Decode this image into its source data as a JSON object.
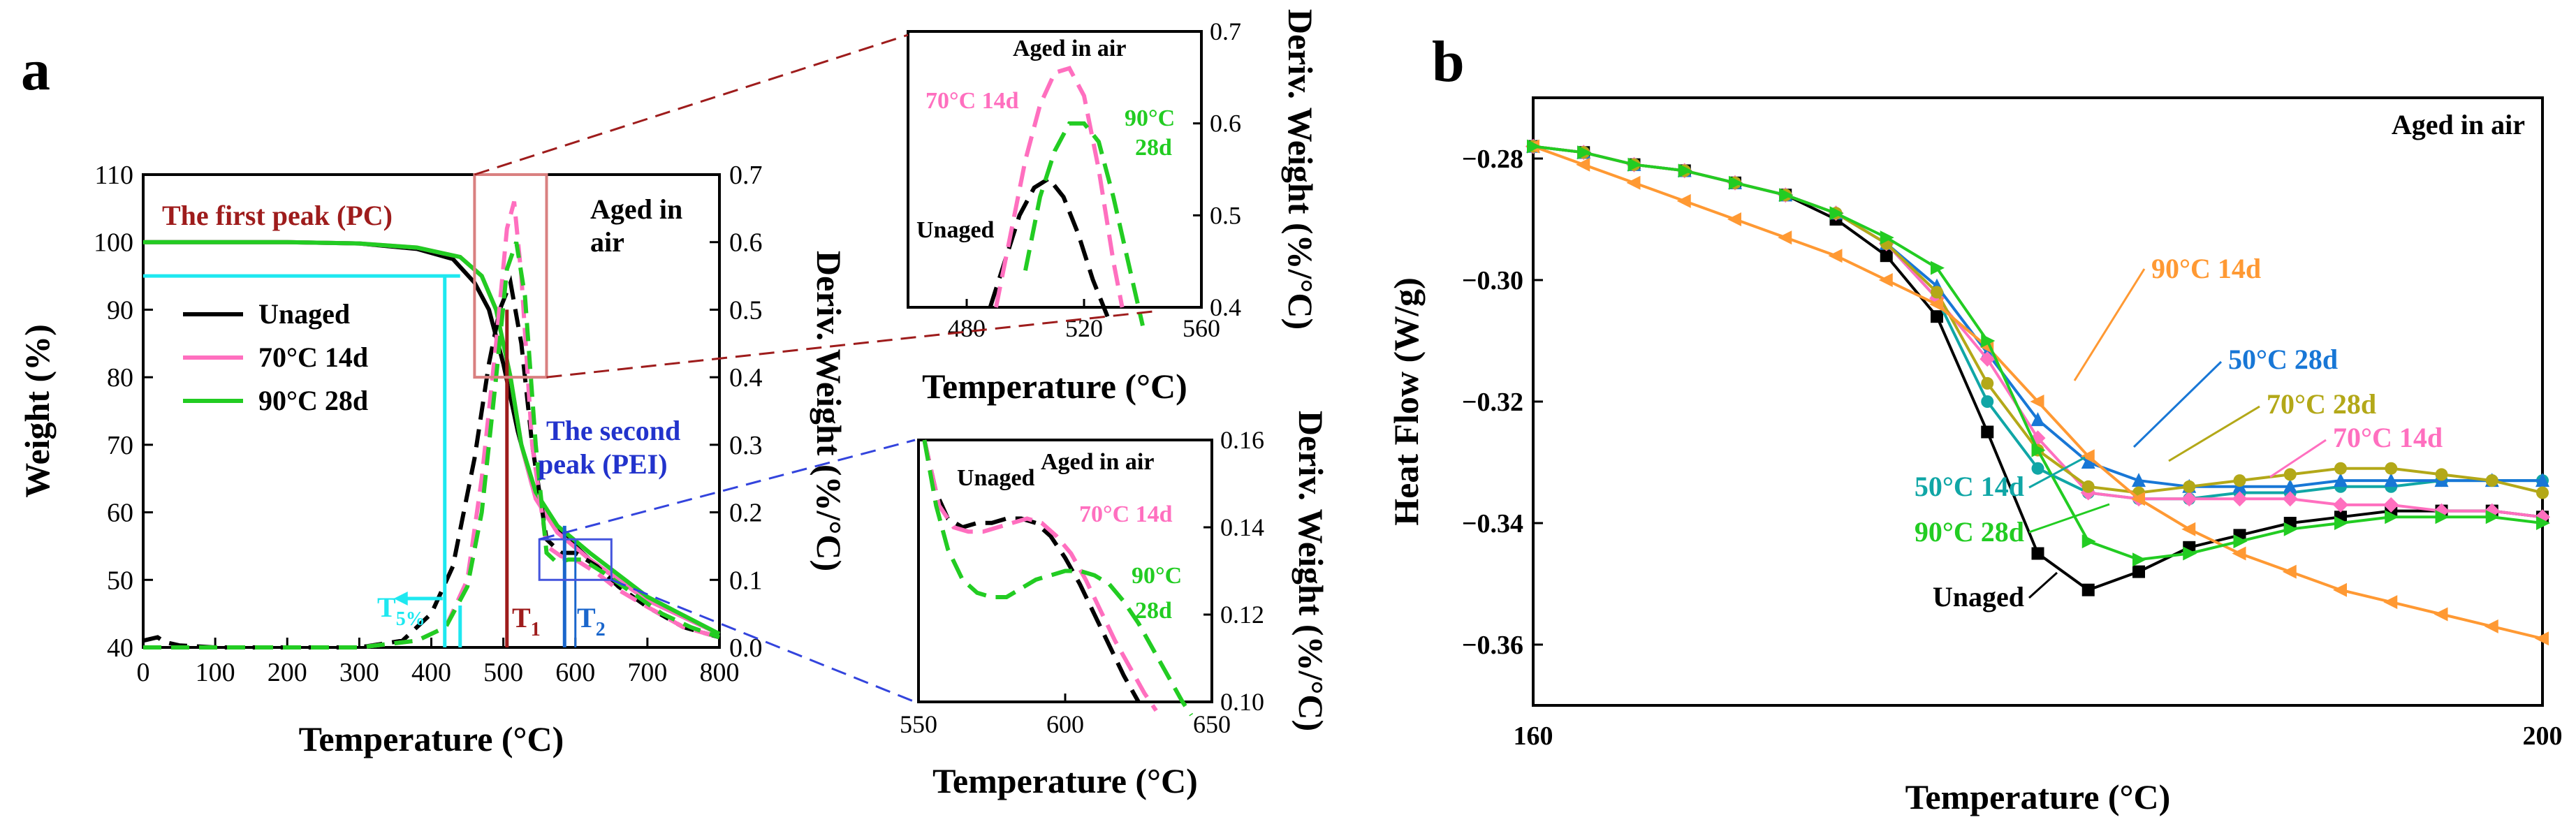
{
  "panels": {
    "a": {
      "label": "a",
      "aged_note": [
        "Aged in",
        "air"
      ],
      "first_peak_label": "The first peak (PC)",
      "second_peak_label": [
        "The second",
        "peak (PEI)"
      ],
      "t5_label": "T",
      "t5_sub": "5%",
      "t1_label": "T",
      "t1_sub": "1",
      "t2_label": "T",
      "t2_sub": "2",
      "legend": [
        "Unaged",
        "70°C 14d",
        "90°C 28d"
      ]
    },
    "inset1": {
      "aged_note": "Aged in air",
      "labels": {
        "unaged": "Unaged",
        "s70": "70°C 14d",
        "s90a": "90°C",
        "s90b": "28d"
      }
    },
    "inset2": {
      "aged_note": "Aged in air",
      "labels": {
        "unaged": "Unaged",
        "s70": "70°C 14d",
        "s90a": "90°C",
        "s90b": "28d"
      }
    },
    "b": {
      "label": "b",
      "aged_note": "Aged in air"
    }
  },
  "colors": {
    "unaged": "#000000",
    "s70_14": "#ff6fbf",
    "s90_28": "#22cc22",
    "s50_14": "#10a6a6",
    "s50_28": "#1877d6",
    "s70_28": "#b3a818",
    "s90_14": "#ff9933",
    "t5": "#1ee8f0",
    "firstpeak": "#9e1c1c",
    "firstbox": "#d98080",
    "secondpeak": "#2233cc",
    "t2": "#1a66cc"
  },
  "chart_data": [
    {
      "id": "main",
      "type": "line",
      "xlabel": "Temperature (°C)",
      "ylabel": "Weight (%)",
      "y2label": "Deriv. Weight (%/°C)",
      "xlim": [
        0,
        800
      ],
      "ylim": [
        40,
        110
      ],
      "y2lim": [
        0,
        0.7
      ],
      "xticks": [
        0,
        100,
        200,
        300,
        400,
        500,
        600,
        700,
        800
      ],
      "yticks": [
        40,
        50,
        60,
        70,
        80,
        90,
        100,
        110
      ],
      "y2ticks": [
        0.0,
        0.1,
        0.2,
        0.3,
        0.4,
        0.5,
        0.6,
        0.7
      ],
      "weight_series": [
        {
          "name": "Unaged",
          "x": [
            0,
            200,
            300,
            380,
            430,
            460,
            480,
            500,
            520,
            540,
            570,
            620,
            700,
            800
          ],
          "y": [
            100,
            100,
            99.8,
            99,
            97.5,
            94,
            90,
            82,
            72,
            64,
            58,
            53,
            47,
            42
          ]
        },
        {
          "name": "70°C 14d",
          "x": [
            0,
            200,
            300,
            380,
            440,
            470,
            490,
            510,
            525,
            545,
            575,
            620,
            700,
            800
          ],
          "y": [
            100,
            100,
            99.8,
            99.2,
            97.8,
            95,
            90,
            80,
            70,
            62,
            57,
            53,
            47,
            42
          ]
        },
        {
          "name": "90°C 28d",
          "x": [
            0,
            200,
            300,
            380,
            440,
            470,
            490,
            510,
            525,
            545,
            575,
            620,
            700,
            800
          ],
          "y": [
            100,
            100,
            99.8,
            99.2,
            97.8,
            95,
            90,
            80,
            70,
            63,
            58,
            54,
            47.5,
            42
          ]
        }
      ],
      "deriv_series": [
        {
          "name": "Unaged",
          "x": [
            0,
            20,
            30,
            50,
            100,
            300,
            360,
            400,
            430,
            460,
            480,
            495,
            510,
            525,
            540,
            560,
            580,
            600,
            630,
            660,
            700,
            750,
            800
          ],
          "y": [
            0.01,
            0.015,
            0.008,
            0.003,
            0.0,
            0.0,
            0.01,
            0.05,
            0.12,
            0.28,
            0.42,
            0.5,
            0.54,
            0.45,
            0.3,
            0.16,
            0.14,
            0.14,
            0.12,
            0.09,
            0.06,
            0.03,
            0.015
          ]
        },
        {
          "name": "70°C 14d",
          "x": [
            0,
            100,
            300,
            380,
            420,
            450,
            470,
            490,
            505,
            515,
            525,
            540,
            560,
            580,
            600,
            630,
            660,
            700,
            750,
            800
          ],
          "y": [
            0.0,
            0.0,
            0.0,
            0.01,
            0.03,
            0.1,
            0.25,
            0.45,
            0.62,
            0.66,
            0.55,
            0.3,
            0.15,
            0.135,
            0.13,
            0.11,
            0.085,
            0.06,
            0.03,
            0.015
          ]
        },
        {
          "name": "90°C 28d",
          "x": [
            0,
            100,
            300,
            380,
            420,
            450,
            470,
            490,
            505,
            518,
            530,
            545,
            560,
            575,
            590,
            610,
            640,
            680,
            720,
            760,
            800
          ],
          "y": [
            0.0,
            0.0,
            0.0,
            0.01,
            0.03,
            0.09,
            0.2,
            0.4,
            0.56,
            0.6,
            0.52,
            0.3,
            0.14,
            0.125,
            0.13,
            0.13,
            0.11,
            0.08,
            0.05,
            0.03,
            0.015
          ]
        }
      ],
      "markers": {
        "T5": 440,
        "T5_weight": 95,
        "T1": 505,
        "T2": 585,
        "T2b": 600
      }
    },
    {
      "id": "inset1",
      "type": "line",
      "xlabel": "Temperature (°C)",
      "ylabel": "Deriv. Weight (%/°C)",
      "xlim": [
        460,
        560
      ],
      "ylim": [
        0.4,
        0.7
      ],
      "xticks": [
        480,
        520,
        560
      ],
      "yticks": [
        0.4,
        0.5,
        0.6,
        0.7
      ],
      "series": [
        {
          "name": "Unaged",
          "x": [
            488,
            493,
            498,
            503,
            508,
            513,
            518,
            523,
            528
          ],
          "y": [
            0.4,
            0.45,
            0.5,
            0.53,
            0.54,
            0.52,
            0.48,
            0.43,
            0.39
          ]
        },
        {
          "name": "70°C 14d",
          "x": [
            490,
            495,
            500,
            505,
            510,
            515,
            520,
            525,
            530,
            533
          ],
          "y": [
            0.4,
            0.48,
            0.56,
            0.62,
            0.655,
            0.66,
            0.63,
            0.55,
            0.45,
            0.4
          ]
        },
        {
          "name": "90°C 28d",
          "x": [
            500,
            505,
            510,
            515,
            520,
            525,
            530,
            535,
            540
          ],
          "y": [
            0.44,
            0.52,
            0.57,
            0.6,
            0.6,
            0.58,
            0.52,
            0.45,
            0.38
          ]
        }
      ]
    },
    {
      "id": "inset2",
      "type": "line",
      "xlabel": "Temperature (°C)",
      "ylabel": "Deriv. Weight (%/°C)",
      "xlim": [
        550,
        650
      ],
      "ylim": [
        0.1,
        0.16
      ],
      "xticks": [
        550,
        600,
        650
      ],
      "yticks": [
        0.1,
        0.12,
        0.14,
        0.16
      ],
      "series": [
        {
          "name": "Unaged",
          "x": [
            552,
            556,
            560,
            565,
            570,
            575,
            580,
            585,
            590,
            595,
            600,
            605,
            610,
            615,
            620,
            625
          ],
          "y": [
            0.16,
            0.148,
            0.142,
            0.14,
            0.141,
            0.141,
            0.142,
            0.142,
            0.141,
            0.138,
            0.133,
            0.127,
            0.12,
            0.113,
            0.106,
            0.1
          ]
        },
        {
          "name": "70°C 14d",
          "x": [
            552,
            557,
            562,
            567,
            572,
            577,
            582,
            587,
            592,
            597,
            602,
            607,
            612,
            617,
            622,
            627,
            631
          ],
          "y": [
            0.16,
            0.145,
            0.14,
            0.139,
            0.139,
            0.14,
            0.141,
            0.142,
            0.141,
            0.138,
            0.134,
            0.128,
            0.121,
            0.114,
            0.108,
            0.102,
            0.098
          ]
        },
        {
          "name": "90°C 28d",
          "x": [
            552,
            556,
            560,
            565,
            570,
            575,
            580,
            585,
            590,
            595,
            600,
            605,
            610,
            615,
            620,
            625,
            630,
            635,
            640,
            643
          ],
          "y": [
            0.16,
            0.145,
            0.135,
            0.128,
            0.125,
            0.124,
            0.124,
            0.126,
            0.128,
            0.129,
            0.13,
            0.13,
            0.129,
            0.127,
            0.123,
            0.118,
            0.112,
            0.106,
            0.1,
            0.097
          ]
        }
      ]
    },
    {
      "id": "b",
      "type": "line",
      "xlabel": "Temperature (°C)",
      "ylabel": "Heat Flow (W/g)",
      "xlim": [
        160,
        200
      ],
      "ylim": [
        -0.37,
        -0.27
      ],
      "xticks": [
        160,
        200
      ],
      "yticks": [
        -0.28,
        -0.3,
        -0.32,
        -0.34,
        -0.36
      ],
      "ytick_labels": [
        "−0.28",
        "−0.30",
        "−0.32",
        "−0.34",
        "−0.36"
      ],
      "series": [
        {
          "name": "Unaged",
          "marker": "square",
          "label_text": "Unaged",
          "x": [
            160,
            162,
            164,
            166,
            168,
            170,
            172,
            174,
            176,
            178,
            180,
            182,
            184,
            186,
            188,
            190,
            192,
            194,
            196,
            198,
            200
          ],
          "y": [
            -0.278,
            -0.279,
            -0.281,
            -0.282,
            -0.284,
            -0.286,
            -0.29,
            -0.296,
            -0.306,
            -0.325,
            -0.345,
            -0.351,
            -0.348,
            -0.344,
            -0.342,
            -0.34,
            -0.339,
            -0.338,
            -0.338,
            -0.338,
            -0.339
          ]
        },
        {
          "name": "50°C 14d",
          "marker": "circle",
          "label_text": "50°C 14d",
          "x": [
            160,
            162,
            164,
            166,
            168,
            170,
            172,
            174,
            176,
            178,
            180,
            182,
            184,
            186,
            188,
            190,
            192,
            194,
            196,
            198,
            200
          ],
          "y": [
            -0.278,
            -0.279,
            -0.281,
            -0.282,
            -0.284,
            -0.286,
            -0.289,
            -0.294,
            -0.303,
            -0.32,
            -0.331,
            -0.335,
            -0.336,
            -0.336,
            -0.335,
            -0.335,
            -0.334,
            -0.334,
            -0.333,
            -0.333,
            -0.333
          ]
        },
        {
          "name": "50°C 28d",
          "marker": "triangle-up",
          "label_text": "50°C 28d",
          "x": [
            160,
            162,
            164,
            166,
            168,
            170,
            172,
            174,
            176,
            178,
            180,
            182,
            184,
            186,
            188,
            190,
            192,
            194,
            196,
            198,
            200
          ],
          "y": [
            -0.278,
            -0.279,
            -0.281,
            -0.282,
            -0.284,
            -0.286,
            -0.289,
            -0.294,
            -0.301,
            -0.312,
            -0.323,
            -0.33,
            -0.333,
            -0.334,
            -0.334,
            -0.334,
            -0.333,
            -0.333,
            -0.333,
            -0.333,
            -0.333
          ]
        },
        {
          "name": "70°C 14d",
          "marker": "diamond",
          "label_text": "70°C 14d",
          "x": [
            160,
            162,
            164,
            166,
            168,
            170,
            172,
            174,
            176,
            178,
            180,
            182,
            184,
            186,
            188,
            190,
            192,
            194,
            196,
            198,
            200
          ],
          "y": [
            -0.278,
            -0.279,
            -0.281,
            -0.282,
            -0.284,
            -0.286,
            -0.289,
            -0.294,
            -0.303,
            -0.313,
            -0.326,
            -0.335,
            -0.336,
            -0.336,
            -0.336,
            -0.336,
            -0.337,
            -0.337,
            -0.338,
            -0.338,
            -0.339
          ]
        },
        {
          "name": "70°C 28d",
          "marker": "circle",
          "label_text": "70°C 28d",
          "x": [
            160,
            162,
            164,
            166,
            168,
            170,
            172,
            174,
            176,
            178,
            180,
            182,
            184,
            186,
            188,
            190,
            192,
            194,
            196,
            198,
            200
          ],
          "y": [
            -0.278,
            -0.279,
            -0.281,
            -0.282,
            -0.284,
            -0.286,
            -0.289,
            -0.294,
            -0.302,
            -0.317,
            -0.328,
            -0.334,
            -0.335,
            -0.334,
            -0.333,
            -0.332,
            -0.331,
            -0.331,
            -0.332,
            -0.333,
            -0.335
          ]
        },
        {
          "name": "90°C 14d",
          "marker": "triangle-left",
          "label_text": "90°C 14d",
          "x": [
            160,
            162,
            164,
            166,
            168,
            170,
            172,
            174,
            176,
            178,
            180,
            182,
            184,
            186,
            188,
            190,
            192,
            194,
            196,
            198,
            200
          ],
          "y": [
            -0.278,
            -0.281,
            -0.284,
            -0.287,
            -0.29,
            -0.293,
            -0.296,
            -0.3,
            -0.304,
            -0.311,
            -0.32,
            -0.329,
            -0.336,
            -0.341,
            -0.345,
            -0.348,
            -0.351,
            -0.353,
            -0.355,
            -0.357,
            -0.359
          ]
        },
        {
          "name": "90°C 28d",
          "marker": "triangle-right",
          "label_text": "90°C 28d",
          "x": [
            160,
            162,
            164,
            166,
            168,
            170,
            172,
            174,
            176,
            178,
            180,
            182,
            184,
            186,
            188,
            190,
            192,
            194,
            196,
            198,
            200
          ],
          "y": [
            -0.278,
            -0.279,
            -0.281,
            -0.282,
            -0.284,
            -0.286,
            -0.289,
            -0.293,
            -0.298,
            -0.31,
            -0.328,
            -0.343,
            -0.346,
            -0.345,
            -0.343,
            -0.341,
            -0.34,
            -0.339,
            -0.339,
            -0.339,
            -0.34
          ]
        }
      ]
    }
  ]
}
